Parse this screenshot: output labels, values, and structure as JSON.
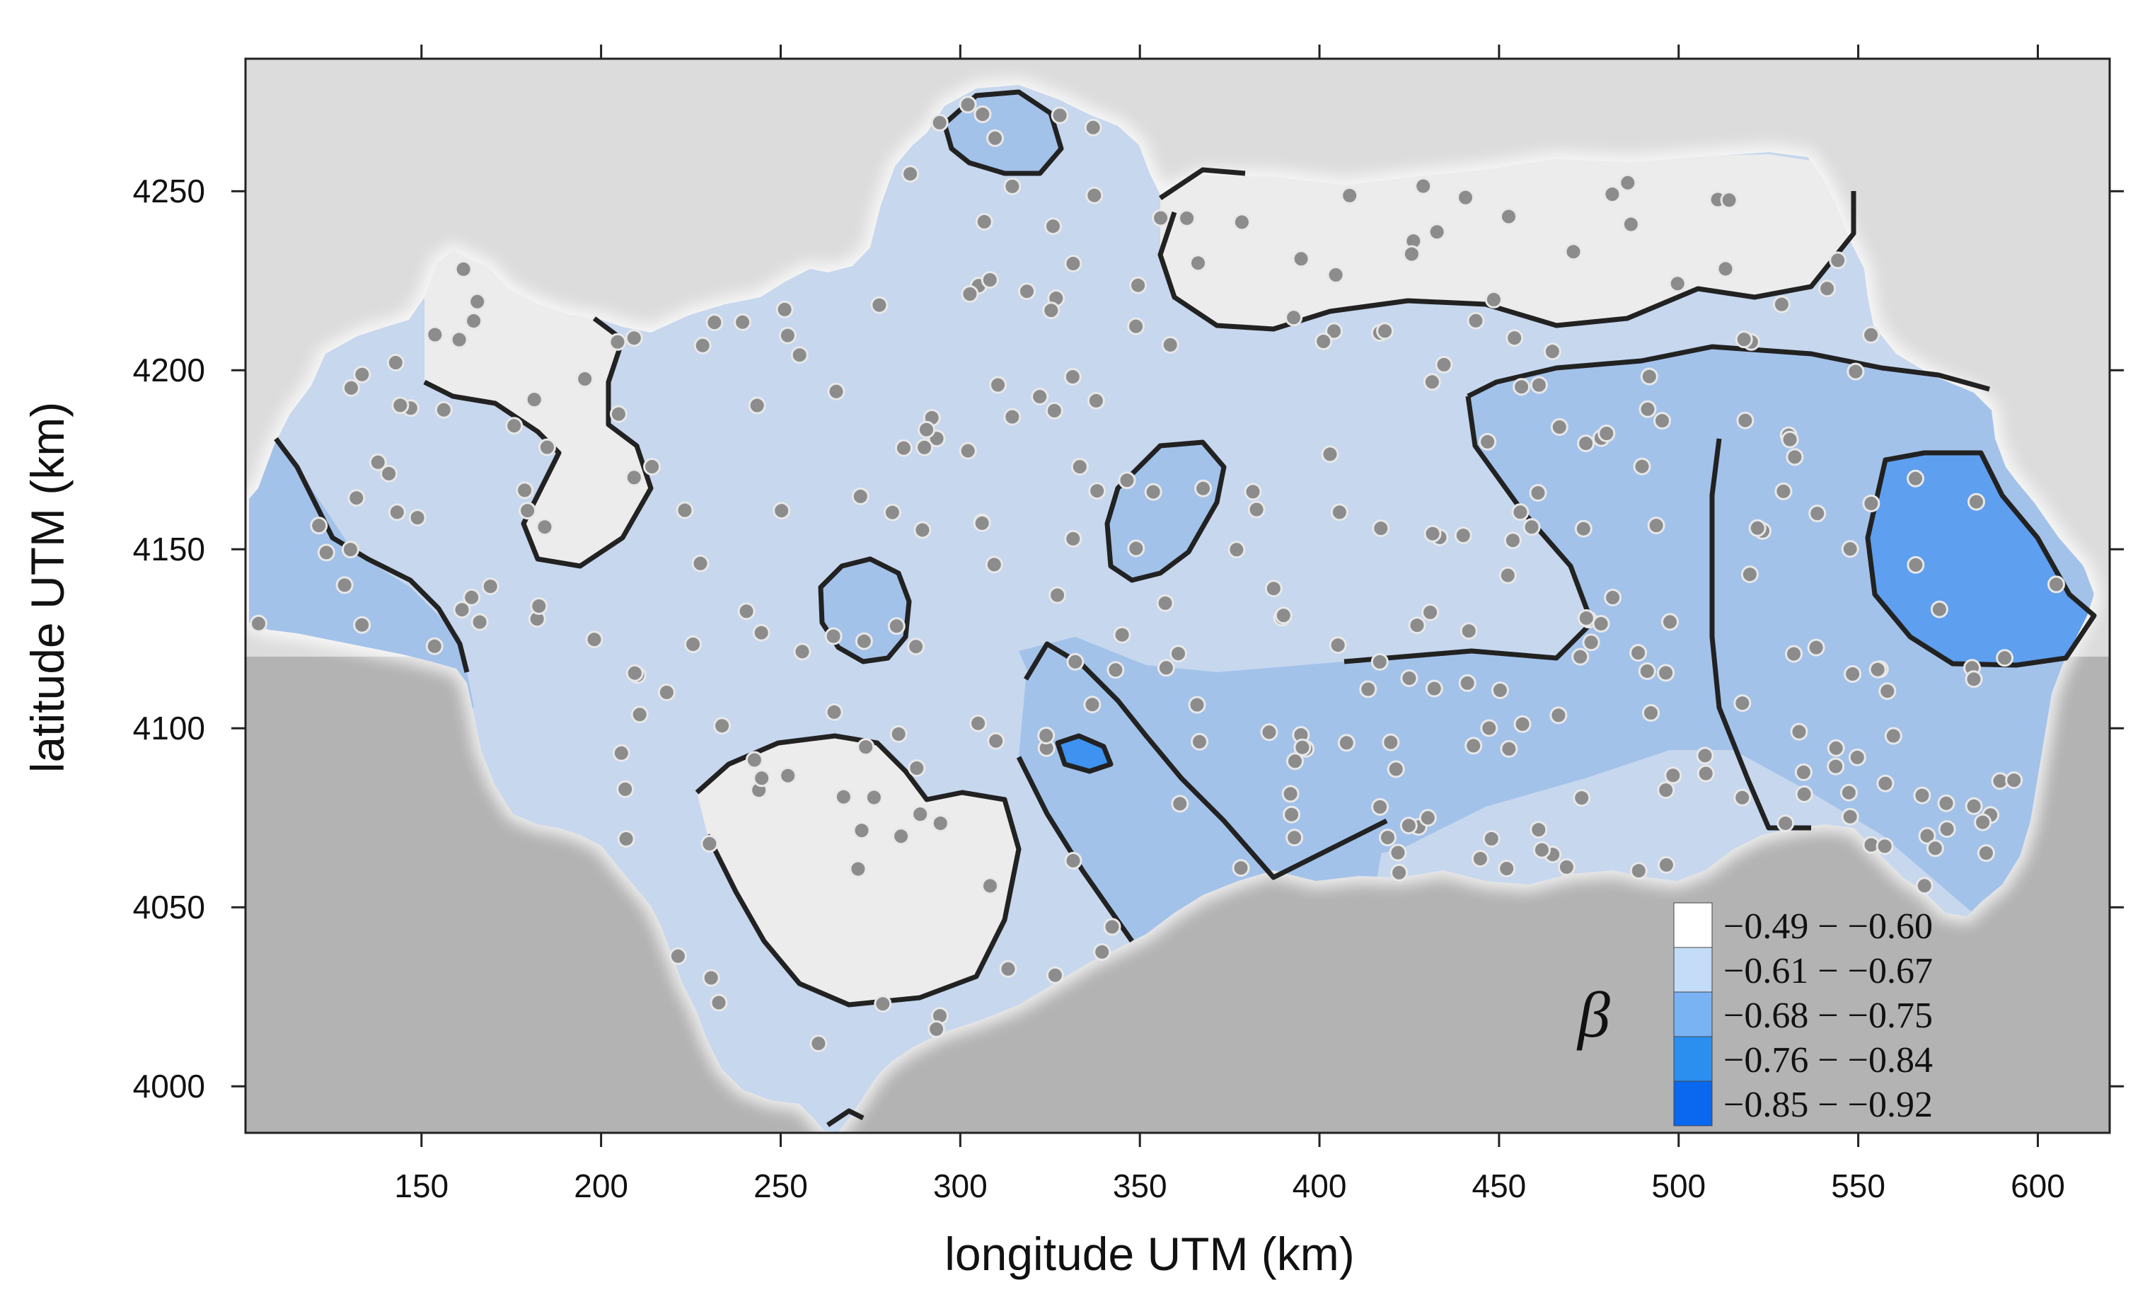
{
  "map": {
    "axes": {
      "xlabel": "longitude UTM (km)",
      "ylabel": "latitude UTM (km)",
      "x_ticks": [
        "150",
        "200",
        "250",
        "300",
        "350",
        "400",
        "450",
        "500",
        "550",
        "600"
      ],
      "y_ticks": [
        "4000",
        "4050",
        "4100",
        "4150",
        "4200",
        "4250"
      ],
      "xlim": [
        101,
        620
      ],
      "ylim": [
        3987,
        4287
      ]
    },
    "legend": {
      "symbol": "β",
      "entries": [
        {
          "label": "−0.49 − −0.60",
          "color": "#ffffff"
        },
        {
          "label": "−0.61 − −0.67",
          "color": "#c4dcf7"
        },
        {
          "label": "−0.68 − −0.75",
          "color": "#7ab3f3"
        },
        {
          "label": "−0.76 − −0.84",
          "color": "#2b8ff0"
        },
        {
          "label": "−0.85 − −0.92",
          "color": "#0a67ef"
        }
      ]
    },
    "colors": {
      "sea_north": "#dcdcdc",
      "sea_south": "#b3b3b3",
      "region_base": "#c6d7ee",
      "contour_line": "#222222",
      "station_marker": "#8c8c8c"
    },
    "station_count": 340
  }
}
